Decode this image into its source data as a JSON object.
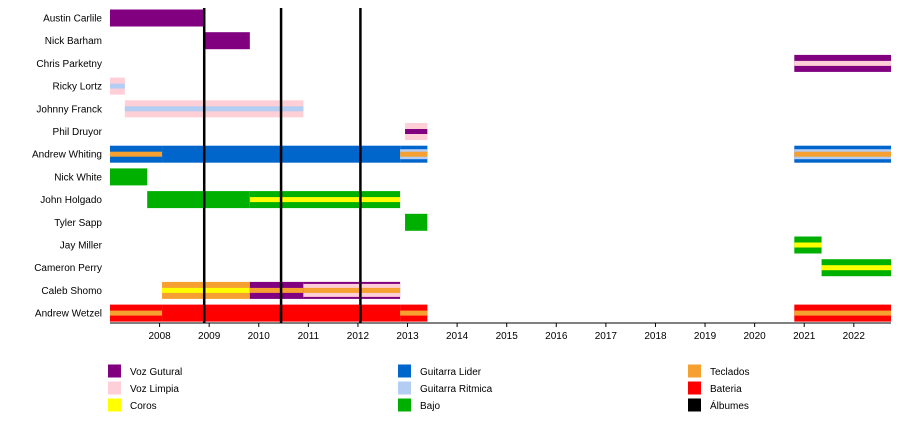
{
  "chart_data": {
    "type": "timeline",
    "x_range": [
      2007,
      2022.75
    ],
    "x_ticks": [
      2008,
      2009,
      2010,
      2011,
      2012,
      2013,
      2014,
      2015,
      2016,
      2017,
      2018,
      2019,
      2020,
      2021,
      2022
    ],
    "grid": false,
    "roles": {
      "voz_gutural": {
        "label": "Voz Gutural",
        "color": "#800080"
      },
      "voz_limpia": {
        "label": "Voz Limpia",
        "color": "#ffcfd7"
      },
      "coros": {
        "label": "Coros",
        "color": "#ffff00"
      },
      "guitarra_lider": {
        "label": "Guitarra Lider",
        "color": "#0066cc"
      },
      "guitarra_ritmica": {
        "label": "Guitarra Ritmica",
        "color": "#b3cdf3"
      },
      "bajo": {
        "label": "Bajo",
        "color": "#00b000"
      },
      "teclados": {
        "label": "Teclados",
        "color": "#f5a030"
      },
      "bateria": {
        "label": "Bateria",
        "color": "#ff0000"
      },
      "albumes": {
        "label": "Álbumes",
        "color": "#000000"
      }
    },
    "legend_columns": [
      [
        "voz_gutural",
        "voz_limpia",
        "coros"
      ],
      [
        "guitarra_lider",
        "guitarra_ritmica",
        "bajo"
      ],
      [
        "teclados",
        "bateria",
        "albumes"
      ]
    ],
    "albums": [
      2008.9,
      2010.45,
      2012.05
    ],
    "members": [
      {
        "name": "Austin Carlile",
        "bars": [
          {
            "start": 2007,
            "end": 2008.9,
            "role": "voz_gutural"
          }
        ]
      },
      {
        "name": "Nick Barham",
        "bars": [
          {
            "start": 2008.9,
            "end": 2009.82,
            "role": "voz_gutural"
          }
        ]
      },
      {
        "name": "Chris Parketny",
        "bars": [
          {
            "start": 2020.8,
            "end": 2022.75,
            "role": "voz_gutural",
            "inner": "voz_limpia"
          }
        ]
      },
      {
        "name": "Ricky Lortz",
        "bars": [
          {
            "start": 2007,
            "end": 2007.3,
            "role": "voz_limpia",
            "inner": "guitarra_ritmica"
          }
        ]
      },
      {
        "name": "Johnny Franck",
        "bars": [
          {
            "start": 2007.3,
            "end": 2010.9,
            "role": "voz_limpia",
            "inner": "guitarra_ritmica"
          }
        ]
      },
      {
        "name": "Phil Druyor",
        "bars": [
          {
            "start": 2012.95,
            "end": 2013.4,
            "role": "voz_limpia",
            "inner": "voz_gutural"
          }
        ]
      },
      {
        "name": "Andrew Whiting",
        "bars": [
          {
            "start": 2007,
            "end": 2008.05,
            "role": "guitarra_lider",
            "inner": "teclados"
          },
          {
            "start": 2008.05,
            "end": 2012.85,
            "role": "guitarra_lider"
          },
          {
            "start": 2012.85,
            "end": 2013.4,
            "role": "guitarra_lider",
            "inner": "teclados",
            "mid": "guitarra_ritmica"
          },
          {
            "start": 2020.8,
            "end": 2022.75,
            "role": "guitarra_lider",
            "inner": "teclados",
            "mid": "guitarra_ritmica"
          }
        ]
      },
      {
        "name": "Nick White",
        "bars": [
          {
            "start": 2007,
            "end": 2007.75,
            "role": "bajo"
          }
        ]
      },
      {
        "name": "John Holgado",
        "bars": [
          {
            "start": 2007.75,
            "end": 2009.82,
            "role": "bajo"
          },
          {
            "start": 2009.82,
            "end": 2012.85,
            "role": "bajo",
            "inner": "coros"
          }
        ]
      },
      {
        "name": "Tyler Sapp",
        "bars": [
          {
            "start": 2012.95,
            "end": 2013.4,
            "role": "bajo"
          }
        ]
      },
      {
        "name": "Jay Miller",
        "bars": [
          {
            "start": 2020.8,
            "end": 2021.35,
            "role": "bajo",
            "inner": "coros"
          }
        ]
      },
      {
        "name": "Cameron Perry",
        "bars": [
          {
            "start": 2021.35,
            "end": 2022.75,
            "role": "bajo",
            "inner": "coros"
          }
        ]
      },
      {
        "name": "Caleb Shomo",
        "bars": [
          {
            "start": 2008.05,
            "end": 2009.82,
            "role": "teclados",
            "inner": "coros"
          },
          {
            "start": 2009.82,
            "end": 2010.9,
            "role": "voz_gutural",
            "inner": "teclados"
          },
          {
            "start": 2010.9,
            "end": 2012.85,
            "role": "voz_limpia",
            "inner": "teclados",
            "outline": "voz_gutural"
          }
        ]
      },
      {
        "name": "Andrew Wetzel",
        "bars": [
          {
            "start": 2007,
            "end": 2008.05,
            "role": "bateria",
            "inner": "teclados"
          },
          {
            "start": 2008.05,
            "end": 2012.85,
            "role": "bateria"
          },
          {
            "start": 2012.85,
            "end": 2013.4,
            "role": "bateria",
            "inner": "teclados"
          },
          {
            "start": 2020.8,
            "end": 2022.75,
            "role": "bateria",
            "inner": "teclados"
          }
        ]
      }
    ]
  }
}
